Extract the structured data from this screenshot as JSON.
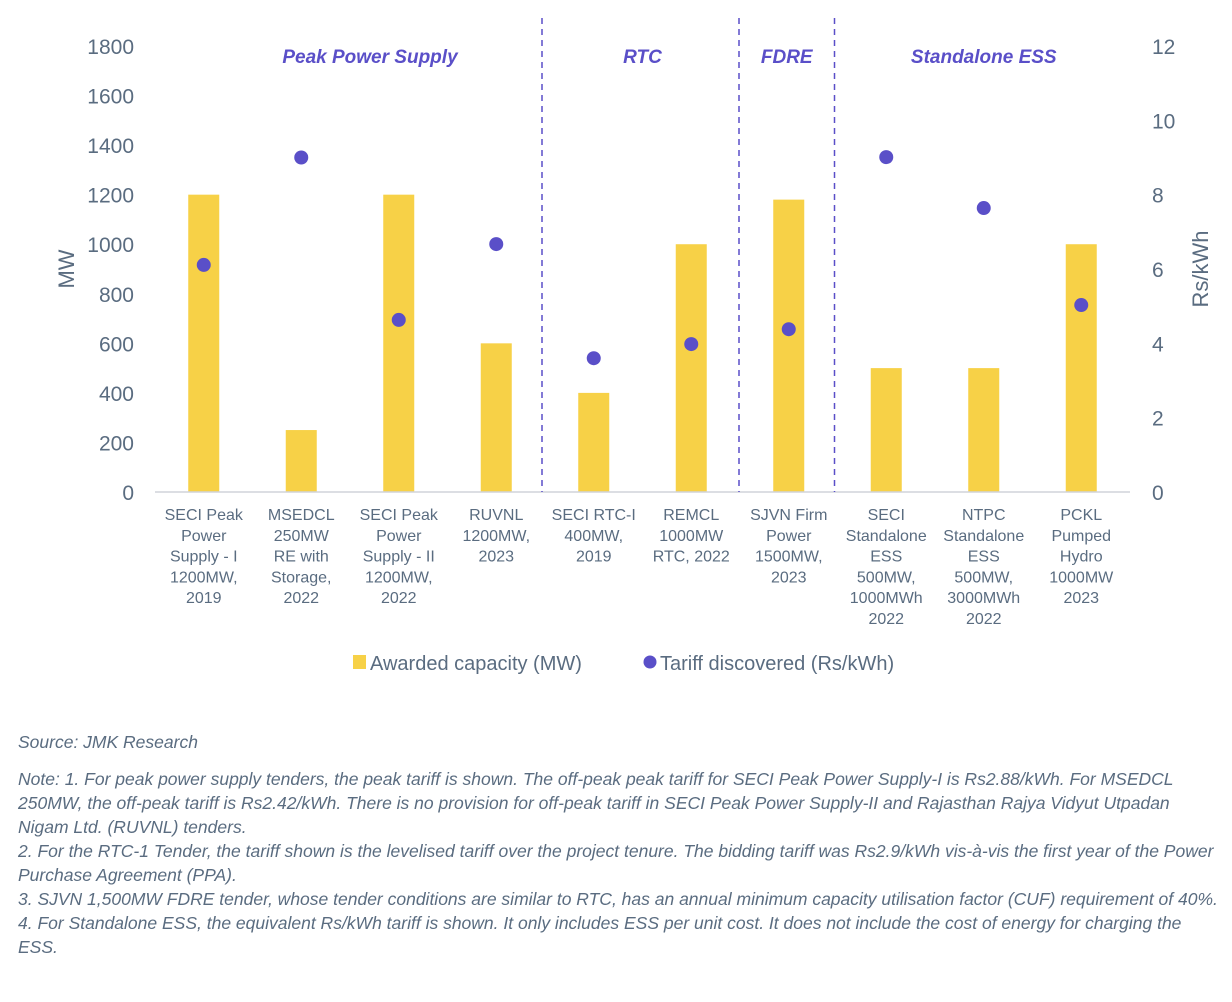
{
  "chart_data": {
    "type": "bar+scatter",
    "categories": [
      [
        "SECI Peak",
        "Power",
        "Supply - I",
        "1200MW,",
        "2019"
      ],
      [
        "MSEDCL",
        "250MW",
        "RE with",
        "Storage,",
        "2022"
      ],
      [
        "SECI Peak",
        "Power",
        "Supply - II",
        "1200MW,",
        "2022"
      ],
      [
        "RUVNL",
        "1200MW,",
        "2023"
      ],
      [
        "SECI RTC-I",
        "400MW,",
        "2019"
      ],
      [
        "REMCL",
        "1000MW",
        "RTC, 2022"
      ],
      [
        "SJVN Firm",
        "Power",
        "1500MW,",
        "2023"
      ],
      [
        "SECI",
        "Standalone",
        "ESS",
        "500MW,",
        "1000MWh",
        "2022"
      ],
      [
        "NTPC",
        "Standalone",
        "ESS",
        "500MW,",
        "3000MWh",
        "2022"
      ],
      [
        "PCKL",
        "Pumped",
        "Hydro",
        "1000MW",
        "2023"
      ]
    ],
    "series": [
      {
        "name": "Awarded capacity (MW)",
        "type": "bar",
        "axis": "left",
        "color": "#F7D147",
        "values": [
          1200,
          250,
          1200,
          600,
          400,
          1000,
          1180,
          500,
          500,
          1000
        ]
      },
      {
        "name": "Tariff discovered (Rs/kWh)",
        "type": "scatter",
        "axis": "right",
        "color": "#5A4FC8",
        "values": [
          6.11,
          9.0,
          4.63,
          6.67,
          3.6,
          3.98,
          4.38,
          9.01,
          7.64,
          5.03
        ]
      }
    ],
    "ylabel": "MW",
    "ylabel_right": "Rs/kWh",
    "ylim": [
      0,
      1800
    ],
    "ylim_right": [
      0,
      12
    ],
    "yticks": [
      "0",
      "200",
      "400",
      "600",
      "800",
      "1000",
      "1200",
      "1400",
      "1600",
      "1800"
    ],
    "yticks_right": [
      "0",
      "2",
      "4",
      "6",
      "8",
      "10",
      "12"
    ],
    "sections": [
      {
        "label": "Peak Power Supply",
        "start": 0,
        "end": 3
      },
      {
        "label": "RTC",
        "start": 4,
        "end": 5
      },
      {
        "label": "FDRE",
        "start": 6,
        "end": 6
      },
      {
        "label": "Standalone ESS",
        "start": 7,
        "end": 9
      }
    ],
    "legend_placement": "bottom",
    "grid": false
  },
  "notes": {
    "source": "Source: JMK Research",
    "lines": [
      "Note: 1. For peak power supply tenders, the peak tariff is shown. The off-peak peak tariff for SECI Peak Power Supply-I is Rs2.88/kWh. For MSEDCL 250MW, the off-peak tariff is Rs2.42/kWh. There is no provision for off-peak tariff in SECI Peak Power Supply-II and Rajasthan Rajya Vidyut Utpadan Nigam Ltd. (RUVNL) tenders.",
      "2. For the RTC-1 Tender, the tariff shown is the levelised tariff over the project tenure. The bidding tariff was Rs2.9/kWh vis-à-vis the first year of the Power Purchase Agreement (PPA).",
      "3. SJVN 1,500MW FDRE tender, whose tender conditions are similar to RTC, has an annual minimum capacity utilisation factor (CUF) requirement of 40%.",
      "4. For Standalone ESS, the equivalent Rs/kWh tariff is shown. It only includes ESS per unit cost. It does not include the cost of energy for charging the ESS."
    ]
  }
}
